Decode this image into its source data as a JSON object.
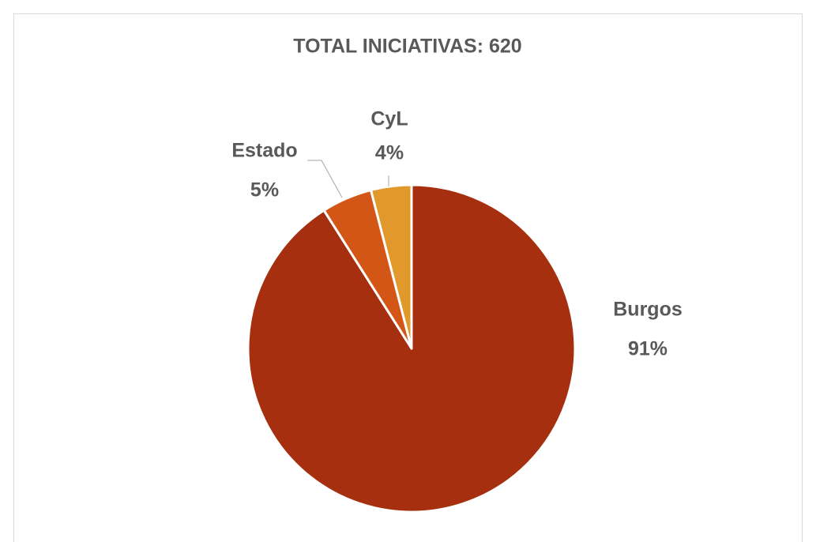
{
  "chart_data": {
    "type": "pie",
    "title": "TOTAL INICIATIVAS: 620",
    "categories": [
      "Burgos",
      "Estado",
      "CyL"
    ],
    "values": [
      91,
      5,
      4
    ],
    "value_labels": [
      "91%",
      "5%",
      "4%"
    ],
    "colors": [
      "#a52f0f",
      "#d45616",
      "#e0992a"
    ]
  }
}
